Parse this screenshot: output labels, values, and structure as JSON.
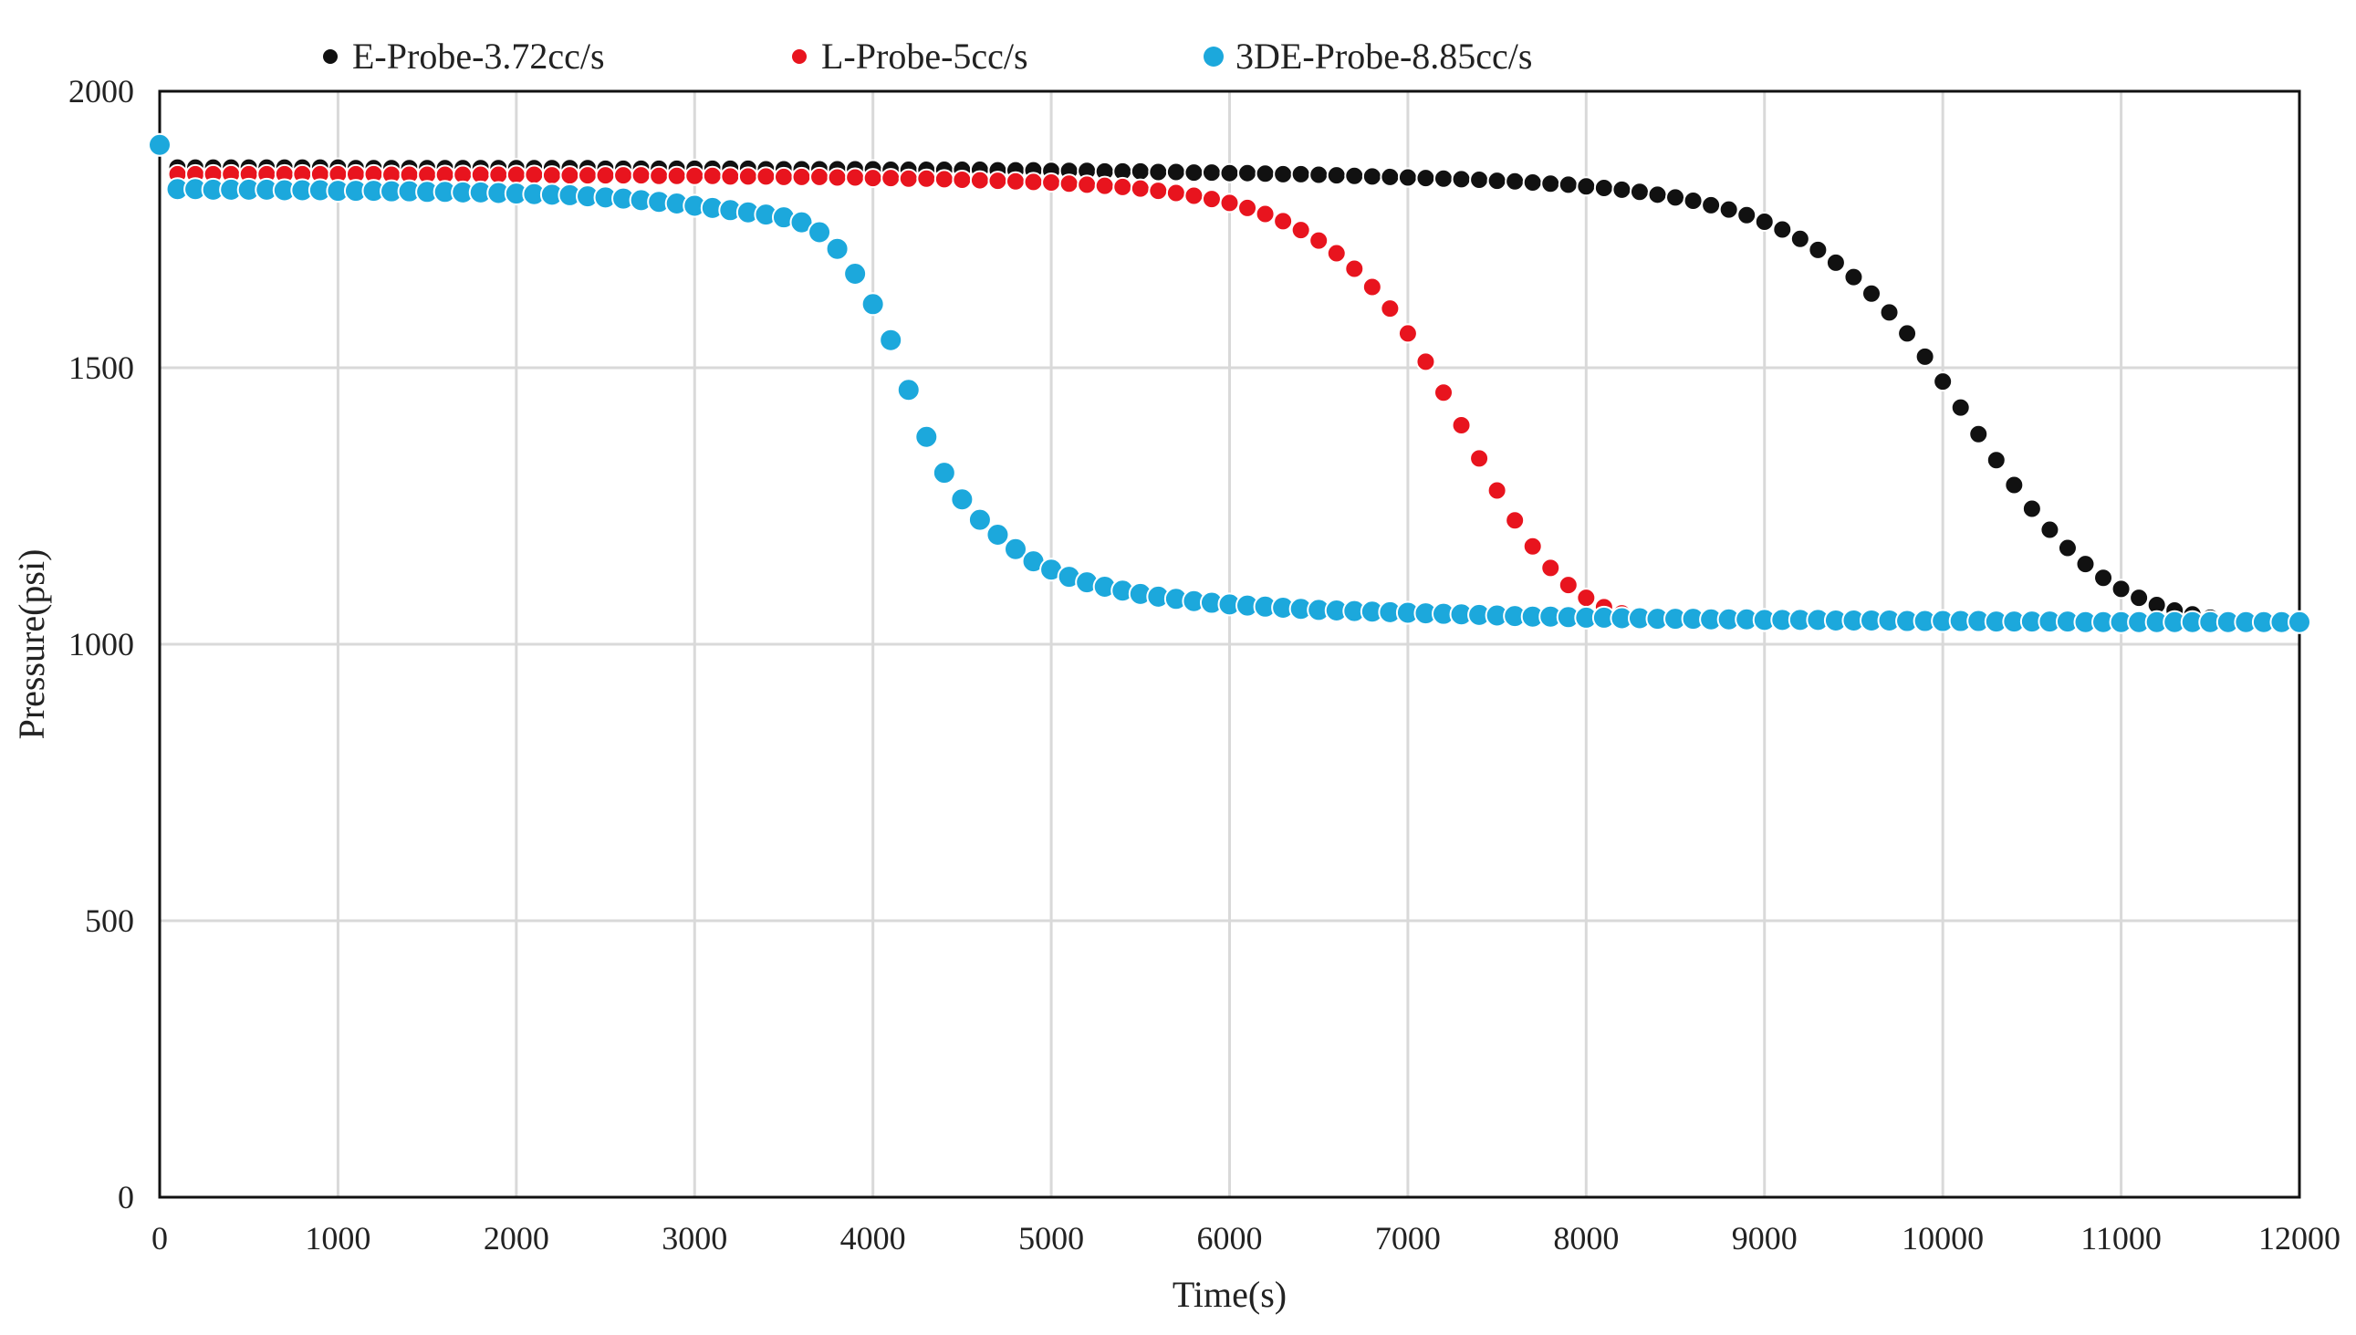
{
  "chart_data": {
    "type": "scatter",
    "title": "",
    "xlabel": "Time(s)",
    "ylabel": "Pressure(psi)",
    "xlim": [
      0,
      12000
    ],
    "ylim": [
      0,
      2000
    ],
    "x_ticks": [
      0,
      1000,
      2000,
      3000,
      4000,
      5000,
      6000,
      7000,
      8000,
      9000,
      10000,
      11000,
      12000
    ],
    "y_ticks": [
      0,
      500,
      1000,
      1500,
      2000
    ],
    "grid": true,
    "legend_position": "top",
    "series": [
      {
        "name": "E-Probe-3.72cc/s",
        "color": "#111111",
        "x": [
          100,
          200,
          300,
          400,
          500,
          600,
          700,
          800,
          900,
          1000,
          1100,
          1200,
          1300,
          1400,
          1500,
          1600,
          1700,
          1800,
          1900,
          2000,
          2100,
          2200,
          2300,
          2400,
          2500,
          2600,
          2700,
          2800,
          2900,
          3000,
          3100,
          3200,
          3300,
          3400,
          3500,
          3600,
          3700,
          3800,
          3900,
          4000,
          4100,
          4200,
          4300,
          4400,
          4500,
          4600,
          4700,
          4800,
          4900,
          5000,
          5100,
          5200,
          5300,
          5400,
          5500,
          5600,
          5700,
          5800,
          5900,
          6000,
          6100,
          6200,
          6300,
          6400,
          6500,
          6600,
          6700,
          6800,
          6900,
          7000,
          7100,
          7200,
          7300,
          7400,
          7500,
          7600,
          7700,
          7800,
          7900,
          8000,
          8100,
          8200,
          8300,
          8400,
          8500,
          8600,
          8700,
          8800,
          8900,
          9000,
          9100,
          9200,
          9300,
          9400,
          9500,
          9600,
          9700,
          9800,
          9900,
          10000,
          10100,
          10200,
          10300,
          10400,
          10500,
          10600,
          10700,
          10800,
          10900,
          11000,
          11100,
          11200,
          11300,
          11400,
          11500,
          11600,
          11700,
          11800,
          11900,
          12000
        ],
        "y": [
          1862,
          1862,
          1862,
          1862,
          1862,
          1862,
          1862,
          1862,
          1862,
          1862,
          1861,
          1861,
          1861,
          1861,
          1861,
          1861,
          1861,
          1861,
          1861,
          1861,
          1861,
          1861,
          1861,
          1861,
          1860,
          1860,
          1860,
          1860,
          1860,
          1860,
          1860,
          1860,
          1860,
          1859,
          1859,
          1859,
          1859,
          1859,
          1859,
          1859,
          1858,
          1858,
          1858,
          1858,
          1858,
          1858,
          1857,
          1857,
          1857,
          1856,
          1856,
          1856,
          1855,
          1855,
          1855,
          1854,
          1854,
          1853,
          1853,
          1852,
          1852,
          1851,
          1850,
          1850,
          1849,
          1848,
          1847,
          1846,
          1845,
          1844,
          1843,
          1842,
          1841,
          1840,
          1838,
          1837,
          1835,
          1833,
          1831,
          1828,
          1825,
          1822,
          1818,
          1813,
          1808,
          1802,
          1794,
          1786,
          1776,
          1764,
          1750,
          1733,
          1713,
          1690,
          1664,
          1634,
          1600,
          1562,
          1520,
          1475,
          1428,
          1380,
          1333,
          1288,
          1245,
          1207,
          1174,
          1145,
          1120,
          1100,
          1084,
          1071,
          1061,
          1054,
          1048,
          1044,
          1041,
          1039,
          1038,
          1037
        ]
      },
      {
        "name": "L-Probe-5cc/s",
        "color": "#e8141e",
        "x": [
          100,
          200,
          300,
          400,
          500,
          600,
          700,
          800,
          900,
          1000,
          1100,
          1200,
          1300,
          1400,
          1500,
          1600,
          1700,
          1800,
          1900,
          2000,
          2100,
          2200,
          2300,
          2400,
          2500,
          2600,
          2700,
          2800,
          2900,
          3000,
          3100,
          3200,
          3300,
          3400,
          3500,
          3600,
          3700,
          3800,
          3900,
          4000,
          4100,
          4200,
          4300,
          4400,
          4500,
          4600,
          4700,
          4800,
          4900,
          5000,
          5100,
          5200,
          5300,
          5400,
          5500,
          5600,
          5700,
          5800,
          5900,
          6000,
          6100,
          6200,
          6300,
          6400,
          6500,
          6600,
          6700,
          6800,
          6900,
          7000,
          7100,
          7200,
          7300,
          7400,
          7500,
          7600,
          7700,
          7800,
          7900,
          8000,
          8100,
          8200,
          8300,
          8400,
          8500,
          8600,
          8700,
          8800,
          8900,
          9000,
          9100,
          9200,
          9300,
          9400,
          9500,
          9600,
          9700,
          9800,
          9900,
          10000,
          10100,
          10200,
          10300,
          10400,
          10500,
          10600,
          10700,
          10800,
          10900,
          11000,
          11100,
          11200,
          11300,
          11400,
          11500,
          11600,
          11700,
          11800,
          11900,
          12000
        ],
        "y": [
          1850,
          1850,
          1850,
          1850,
          1850,
          1850,
          1850,
          1850,
          1850,
          1850,
          1850,
          1850,
          1849,
          1849,
          1849,
          1849,
          1849,
          1849,
          1849,
          1849,
          1849,
          1848,
          1848,
          1848,
          1848,
          1848,
          1848,
          1847,
          1847,
          1847,
          1847,
          1846,
          1846,
          1846,
          1845,
          1845,
          1845,
          1844,
          1844,
          1843,
          1843,
          1842,
          1842,
          1841,
          1840,
          1839,
          1838,
          1837,
          1836,
          1835,
          1833,
          1831,
          1829,
          1827,
          1824,
          1820,
          1816,
          1811,
          1805,
          1798,
          1789,
          1778,
          1765,
          1749,
          1730,
          1707,
          1679,
          1646,
          1607,
          1562,
          1511,
          1455,
          1396,
          1336,
          1278,
          1224,
          1177,
          1138,
          1107,
          1084,
          1067,
          1056,
          1049,
          1045,
          1043,
          1042,
          1041,
          1041,
          1040,
          1040,
          1040,
          1040,
          1040,
          1040,
          1040,
          1040,
          1040,
          1040,
          1040,
          1040,
          1040,
          1040,
          1040,
          1040,
          1040,
          1040,
          1040,
          1040,
          1040,
          1040,
          1040,
          1040,
          1040,
          1040,
          1040,
          1040,
          1040,
          1040,
          1040,
          1040
        ]
      },
      {
        "name": "3DE-Probe-8.85cc/s",
        "color": "#1ca8dc",
        "x": [
          0,
          100,
          200,
          300,
          400,
          500,
          600,
          700,
          800,
          900,
          1000,
          1100,
          1200,
          1300,
          1400,
          1500,
          1600,
          1700,
          1800,
          1900,
          2000,
          2100,
          2200,
          2300,
          2400,
          2500,
          2600,
          2700,
          2800,
          2900,
          3000,
          3100,
          3200,
          3300,
          3400,
          3500,
          3600,
          3700,
          3800,
          3900,
          4000,
          4100,
          4200,
          4300,
          4400,
          4500,
          4600,
          4700,
          4800,
          4900,
          5000,
          5100,
          5200,
          5300,
          5400,
          5500,
          5600,
          5700,
          5800,
          5900,
          6000,
          6100,
          6200,
          6300,
          6400,
          6500,
          6600,
          6700,
          6800,
          6900,
          7000,
          7100,
          7200,
          7300,
          7400,
          7500,
          7600,
          7700,
          7800,
          7900,
          8000,
          8100,
          8200,
          8300,
          8400,
          8500,
          8600,
          8700,
          8800,
          8900,
          9000,
          9100,
          9200,
          9300,
          9400,
          9500,
          9600,
          9700,
          9800,
          9900,
          10000,
          10100,
          10200,
          10300,
          10400,
          10500,
          10600,
          10700,
          10800,
          10900,
          11000,
          11100,
          11200,
          11300,
          11400,
          11500,
          11600,
          11700,
          11800,
          11900,
          12000
        ],
        "y": [
          1903,
          1823,
          1823,
          1822,
          1822,
          1822,
          1822,
          1821,
          1821,
          1821,
          1820,
          1820,
          1820,
          1819,
          1819,
          1818,
          1818,
          1817,
          1817,
          1816,
          1815,
          1814,
          1813,
          1812,
          1810,
          1808,
          1806,
          1803,
          1800,
          1797,
          1793,
          1789,
          1785,
          1781,
          1777,
          1772,
          1763,
          1745,
          1715,
          1670,
          1615,
          1550,
          1460,
          1375,
          1310,
          1262,
          1225,
          1198,
          1172,
          1150,
          1135,
          1122,
          1112,
          1104,
          1097,
          1091,
          1086,
          1082,
          1078,
          1075,
          1072,
          1070,
          1068,
          1066,
          1064,
          1062,
          1061,
          1060,
          1059,
          1058,
          1057,
          1056,
          1055,
          1054,
          1053,
          1052,
          1051,
          1050,
          1050,
          1049,
          1048,
          1048,
          1047,
          1047,
          1046,
          1046,
          1046,
          1045,
          1045,
          1045,
          1044,
          1044,
          1044,
          1044,
          1043,
          1043,
          1043,
          1043,
          1042,
          1042,
          1042,
          1042,
          1042,
          1041,
          1041,
          1041,
          1041,
          1041,
          1040,
          1040,
          1040,
          1040,
          1040,
          1040,
          1040,
          1040,
          1040,
          1040,
          1040,
          1040,
          1040
        ]
      }
    ]
  }
}
